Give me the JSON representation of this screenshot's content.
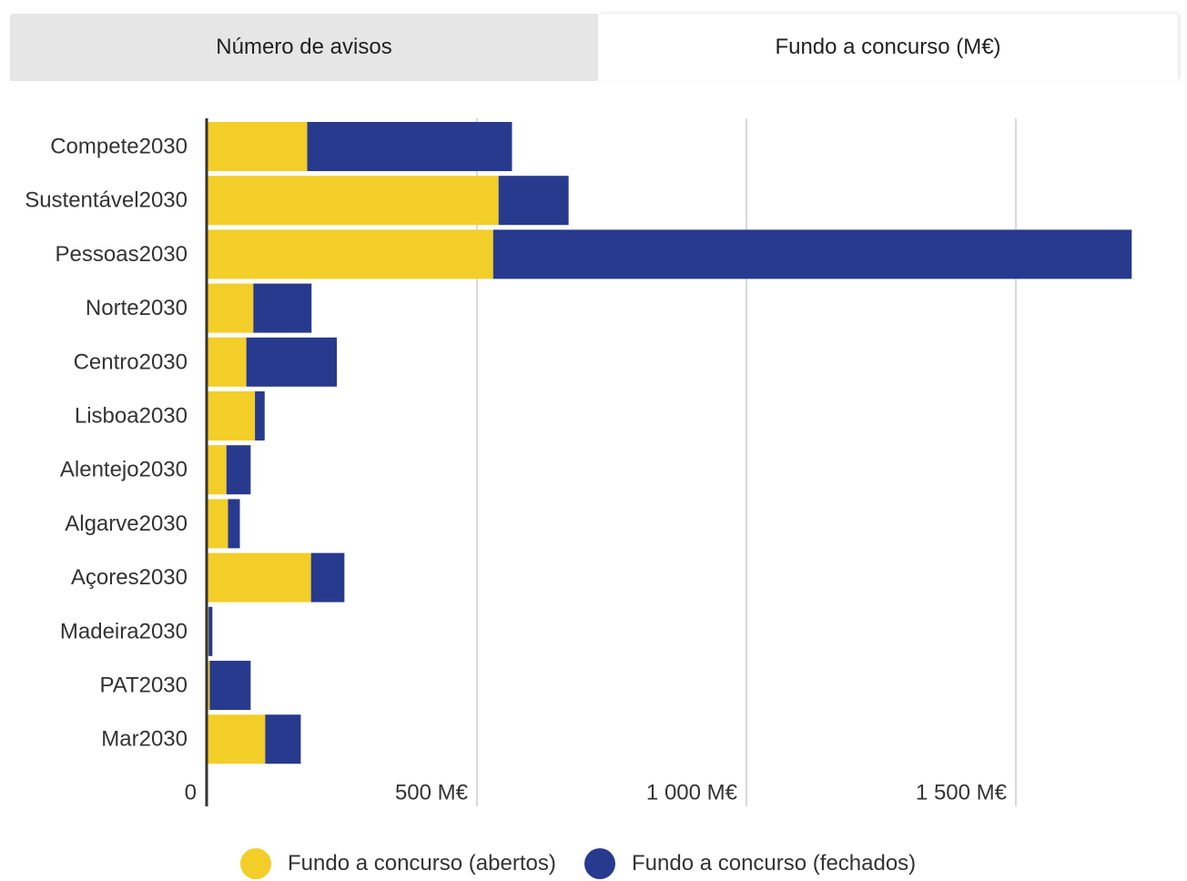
{
  "tabs": [
    {
      "label": "Número de avisos",
      "active": false
    },
    {
      "label": "Fundo a concurso (M€)",
      "active": true
    }
  ],
  "colors": {
    "abertos": "#f3cd28",
    "fechados": "#283a8e",
    "grid": "#d9d9d9",
    "axis": "#333333"
  },
  "chart_data": {
    "type": "bar",
    "orientation": "horizontal",
    "stacked": true,
    "categories": [
      "Compete2030",
      "Sustentável2030",
      "Pessoas2030",
      "Norte2030",
      "Centro2030",
      "Lisboa2030",
      "Alentejo2030",
      "Algarve2030",
      "Açores2030",
      "Madeira2030",
      "PAT2030",
      "Mar2030"
    ],
    "series": [
      {
        "name": "Fundo a concurso (abertos)",
        "color": "#f3cd28",
        "values": [
          185,
          540,
          530,
          85,
          72,
          88,
          35,
          38,
          192,
          2,
          4,
          107
        ]
      },
      {
        "name": "Fundo a concurso (fechados)",
        "color": "#283a8e",
        "values": [
          380,
          130,
          1185,
          108,
          168,
          18,
          45,
          22,
          62,
          7,
          76,
          66
        ]
      }
    ],
    "xlim": [
      0,
      1700
    ],
    "xticks": [
      0,
      500,
      1000,
      1500
    ],
    "xtick_labels": [
      "0",
      "500 M€",
      "1 000 M€",
      "1 500 M€"
    ],
    "grid": true,
    "legend_position": "bottom"
  }
}
